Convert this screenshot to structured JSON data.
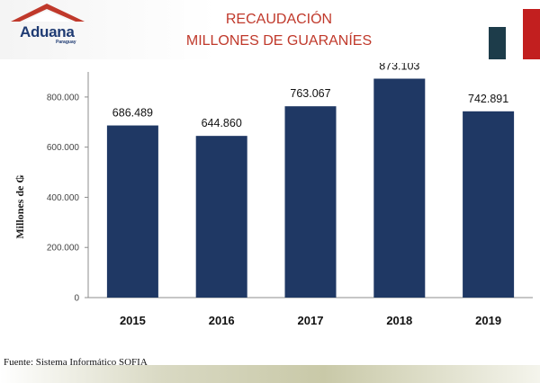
{
  "header": {
    "logo_text": "Aduana",
    "logo_subtext": "Paraguay",
    "title_line1": "RECAUDACIÓN",
    "title_line2": "MILLONES DE GUARANÍES",
    "flag_colors": [
      "#1d3c4a",
      "#ffffff",
      "#c21f1f"
    ]
  },
  "chart_data": {
    "type": "bar",
    "categories": [
      "2015",
      "2016",
      "2017",
      "2018",
      "2019"
    ],
    "values": [
      686489,
      644860,
      763067,
      873103,
      742891
    ],
    "value_labels": [
      "686.489",
      "644.860",
      "763.067",
      "873.103",
      "742.891"
    ],
    "ylabel": "Millones de ₲",
    "xlabel": "",
    "ylim": [
      0,
      900000
    ],
    "yticks": [
      0,
      200000,
      400000,
      600000,
      800000
    ],
    "ytick_labels": [
      "0",
      "200.000",
      "400.000",
      "600.000",
      "800.000"
    ],
    "grid": false,
    "bar_color": "#1f3864"
  },
  "footer": {
    "source": "Fuente: Sistema Informático SOFIA"
  }
}
